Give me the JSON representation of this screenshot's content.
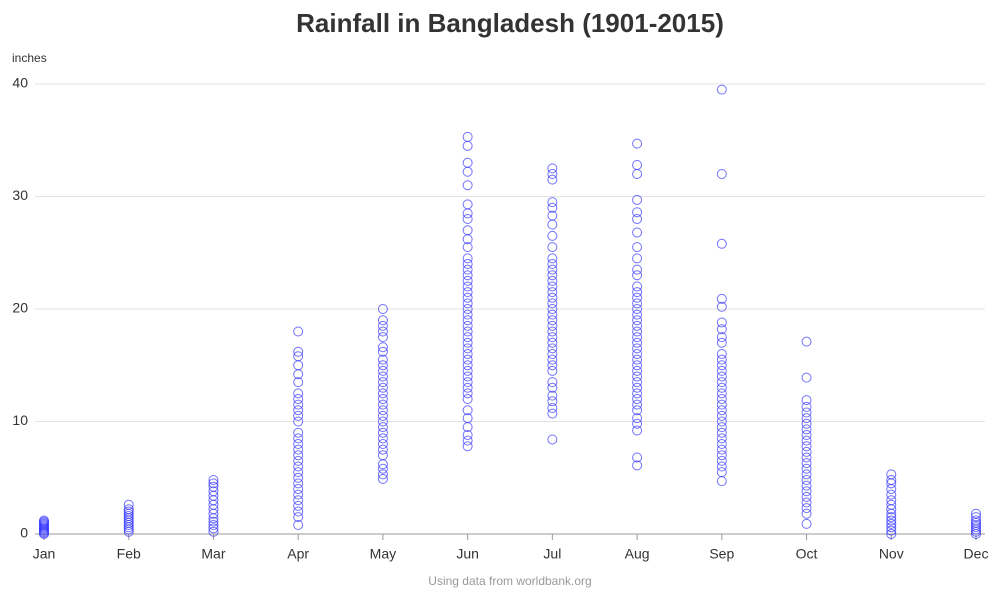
{
  "chart_data": {
    "type": "scatter",
    "title": "Rainfall in Bangladesh (1901-2015)",
    "y_label": "inches",
    "source": "Using data from worldbank.org",
    "color": "#3333ff",
    "grid": true,
    "ylim": [
      0,
      40
    ],
    "yticks": [
      0,
      10,
      20,
      30,
      40
    ],
    "categories": [
      "Jan",
      "Feb",
      "Mar",
      "Apr",
      "May",
      "Jun",
      "Jul",
      "Aug",
      "Sep",
      "Oct",
      "Nov",
      "Dec"
    ],
    "values": [
      [
        0,
        0.1,
        0.2,
        0.3,
        0.4,
        0.5,
        0.6,
        0.7,
        0.8,
        0.9,
        1.0,
        1.1,
        1.2
      ],
      [
        0.2,
        0.4,
        0.6,
        0.8,
        1.0,
        1.2,
        1.4,
        1.6,
        1.8,
        2.0,
        2.2,
        2.6
      ],
      [
        0.2,
        0.5,
        0.8,
        1.1,
        1.4,
        1.8,
        2.2,
        2.6,
        3.0,
        3.4,
        3.8,
        4.2,
        4.5,
        4.8
      ],
      [
        0.8,
        1.5,
        2,
        2.5,
        3,
        3.5,
        4,
        4.5,
        5,
        5.5,
        6,
        6.5,
        7,
        7.5,
        8,
        8.5,
        9,
        10,
        10.5,
        11,
        11.5,
        12,
        12.5,
        13.5,
        14.2,
        15,
        15.8,
        16.2,
        18
      ],
      [
        4.9,
        5.3,
        5.8,
        6.2,
        7,
        7.5,
        8,
        8.5,
        9,
        9.5,
        10,
        10.5,
        11,
        11.5,
        12,
        12.5,
        13,
        13.5,
        14,
        14.5,
        15,
        15.5,
        16.2,
        16.6,
        17.5,
        18,
        18.5,
        19,
        20
      ],
      [
        7.8,
        8.3,
        8.8,
        9.5,
        10.3,
        11,
        12,
        12.5,
        13,
        13.5,
        14,
        14.5,
        15,
        15.5,
        16,
        16.5,
        17,
        17.5,
        18,
        18.5,
        19,
        19.5,
        20,
        20.5,
        21,
        21.5,
        22,
        22.5,
        23,
        23.5,
        24,
        24.5,
        25.5,
        26.2,
        27,
        28,
        28.5,
        29.3,
        31,
        32.2,
        33,
        34.5,
        35.3
      ],
      [
        8.4,
        10.7,
        11.2,
        11.8,
        12.3,
        13,
        13.5,
        14.5,
        15,
        15.5,
        16,
        16.5,
        17,
        17.5,
        18,
        18.5,
        19,
        19.5,
        20,
        20.5,
        21,
        21.5,
        22,
        22.5,
        23,
        23.5,
        24,
        24.5,
        25.5,
        26.5,
        27.5,
        28.3,
        29,
        29.5,
        31.5,
        32,
        32.5
      ],
      [
        6.1,
        6.8,
        9.2,
        9.8,
        10.3,
        11,
        11.5,
        12,
        12.5,
        13,
        13.5,
        14,
        14.5,
        15,
        15.5,
        16,
        16.5,
        17,
        17.5,
        18,
        18.5,
        19,
        19.5,
        20,
        20.5,
        21,
        21.5,
        22,
        23,
        23.5,
        24.5,
        25.5,
        26.8,
        28,
        28.6,
        29.7,
        32,
        32.8,
        34.7
      ],
      [
        4.7,
        5.5,
        6,
        6.5,
        7,
        7.5,
        8,
        8.5,
        9,
        9.5,
        10,
        10.5,
        11,
        11.5,
        12,
        12.5,
        13,
        13.5,
        14,
        14.5,
        15,
        15.5,
        16,
        17,
        17.5,
        18.2,
        18.8,
        20.2,
        20.9,
        25.8,
        32,
        39.5
      ],
      [
        0.9,
        1.8,
        2.3,
        2.8,
        3.3,
        3.8,
        4.3,
        4.8,
        5.3,
        5.8,
        6.3,
        6.8,
        7.3,
        7.8,
        8.3,
        8.8,
        9.3,
        9.8,
        10.3,
        10.8,
        11.3,
        11.9,
        13.9,
        17.1
      ],
      [
        0,
        0.3,
        0.6,
        0.9,
        1.2,
        1.5,
        1.8,
        2.2,
        2.6,
        3,
        3.5,
        4,
        4.5,
        4.8,
        5.3
      ],
      [
        0,
        0.2,
        0.4,
        0.6,
        0.8,
        1,
        1.2,
        1.5,
        1.8
      ]
    ]
  }
}
